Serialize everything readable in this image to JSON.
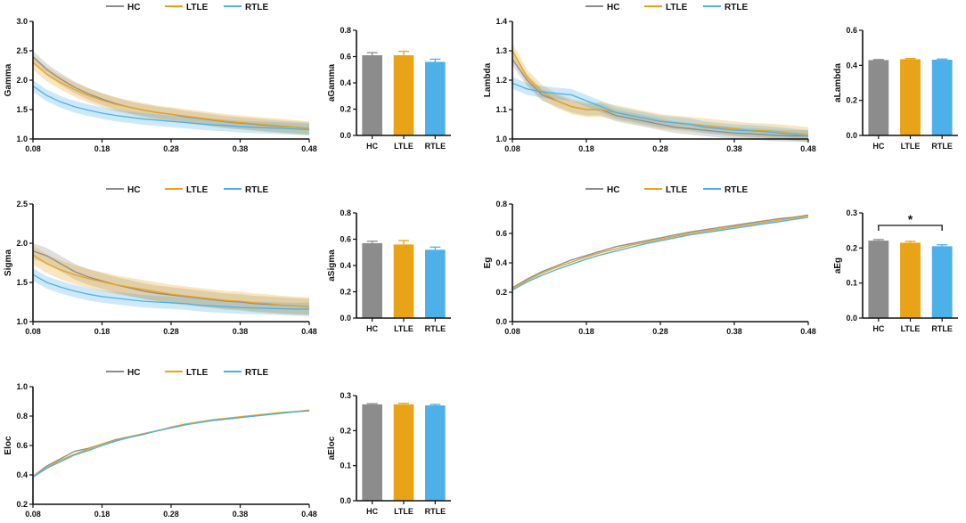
{
  "colors": {
    "HC": "#8c8c8c",
    "LTLE": "#e8a317",
    "RTLE": "#4db0e8"
  },
  "legend_labels": [
    "HC",
    "LTLE",
    "RTLE"
  ],
  "chart_data": [
    {
      "id": "gamma-line",
      "type": "line",
      "ylabel": "Gamma",
      "xlim": [
        0.08,
        0.48
      ],
      "ylim": [
        1.0,
        3.0
      ],
      "xticks": [
        "0.08",
        "0.18",
        "0.28",
        "0.38",
        "0.48"
      ],
      "yticks": [
        "1.0",
        "1.5",
        "2.0",
        "2.5",
        "3.0"
      ],
      "x": [
        0.08,
        0.1,
        0.12,
        0.14,
        0.16,
        0.18,
        0.2,
        0.22,
        0.24,
        0.26,
        0.28,
        0.3,
        0.32,
        0.34,
        0.36,
        0.38,
        0.4,
        0.42,
        0.44,
        0.46,
        0.48
      ],
      "series": [
        {
          "name": "HC",
          "values": [
            2.4,
            2.18,
            2.02,
            1.88,
            1.77,
            1.68,
            1.6,
            1.54,
            1.49,
            1.45,
            1.42,
            1.38,
            1.35,
            1.32,
            1.29,
            1.27,
            1.25,
            1.23,
            1.21,
            1.2,
            1.18
          ],
          "spread": 0.1
        },
        {
          "name": "LTLE",
          "values": [
            2.3,
            2.1,
            1.96,
            1.84,
            1.74,
            1.66,
            1.59,
            1.54,
            1.49,
            1.45,
            1.42,
            1.39,
            1.36,
            1.33,
            1.3,
            1.28,
            1.26,
            1.24,
            1.22,
            1.2,
            1.18
          ],
          "spread": 0.12
        },
        {
          "name": "RTLE",
          "values": [
            1.9,
            1.74,
            1.63,
            1.55,
            1.49,
            1.44,
            1.4,
            1.37,
            1.34,
            1.32,
            1.3,
            1.28,
            1.26,
            1.24,
            1.23,
            1.21,
            1.2,
            1.19,
            1.18,
            1.17,
            1.16
          ],
          "spread": 0.1
        }
      ]
    },
    {
      "id": "gamma-bar",
      "type": "bar",
      "ylabel": "aGamma",
      "ylim": [
        0.0,
        0.8
      ],
      "yticks": [
        "0.0",
        "0.2",
        "0.4",
        "0.6",
        "0.8"
      ],
      "categories": [
        "HC",
        "LTLE",
        "RTLE"
      ],
      "values": [
        0.61,
        0.61,
        0.56
      ],
      "errors": [
        0.02,
        0.03,
        0.02
      ]
    },
    {
      "id": "lambda-line",
      "type": "line",
      "ylabel": "Lambda",
      "xlim": [
        0.08,
        0.48
      ],
      "ylim": [
        1.0,
        1.4
      ],
      "xticks": [
        "0.08",
        "0.18",
        "0.28",
        "0.38",
        "0.48"
      ],
      "yticks": [
        "1.0",
        "1.1",
        "1.2",
        "1.3",
        "1.4"
      ],
      "x": [
        0.08,
        0.1,
        0.12,
        0.14,
        0.16,
        0.18,
        0.2,
        0.22,
        0.24,
        0.26,
        0.28,
        0.3,
        0.32,
        0.34,
        0.36,
        0.38,
        0.4,
        0.42,
        0.44,
        0.46,
        0.48
      ],
      "series": [
        {
          "name": "HC",
          "values": [
            1.27,
            1.2,
            1.15,
            1.13,
            1.11,
            1.1,
            1.1,
            1.08,
            1.07,
            1.06,
            1.05,
            1.04,
            1.035,
            1.03,
            1.025,
            1.02,
            1.018,
            1.015,
            1.012,
            1.01,
            1.01
          ],
          "spread": 0.02
        },
        {
          "name": "LTLE",
          "values": [
            1.3,
            1.21,
            1.16,
            1.13,
            1.11,
            1.1,
            1.1,
            1.09,
            1.08,
            1.07,
            1.06,
            1.055,
            1.05,
            1.045,
            1.04,
            1.035,
            1.03,
            1.028,
            1.025,
            1.02,
            1.015
          ],
          "spread": 0.025
        },
        {
          "name": "RTLE",
          "values": [
            1.19,
            1.17,
            1.16,
            1.155,
            1.15,
            1.13,
            1.11,
            1.09,
            1.08,
            1.07,
            1.06,
            1.055,
            1.05,
            1.04,
            1.035,
            1.03,
            1.028,
            1.025,
            1.02,
            1.015,
            1.01
          ],
          "spread": 0.02
        }
      ]
    },
    {
      "id": "lambda-bar",
      "type": "bar",
      "ylabel": "aLambda",
      "ylim": [
        0.0,
        0.6
      ],
      "yticks": [
        "0.0",
        "0.2",
        "0.4",
        "0.6"
      ],
      "categories": [
        "HC",
        "LTLE",
        "RTLE"
      ],
      "values": [
        0.43,
        0.435,
        0.432
      ],
      "errors": [
        0.003,
        0.004,
        0.004
      ]
    },
    {
      "id": "sigma-line",
      "type": "line",
      "ylabel": "Sigma",
      "xlim": [
        0.08,
        0.48
      ],
      "ylim": [
        1.0,
        2.5
      ],
      "xticks": [
        "0.08",
        "0.18",
        "0.28",
        "0.38",
        "0.48"
      ],
      "yticks": [
        "1.0",
        "1.5",
        "2.0",
        "2.5"
      ],
      "x": [
        0.08,
        0.1,
        0.12,
        0.14,
        0.16,
        0.18,
        0.2,
        0.22,
        0.24,
        0.26,
        0.28,
        0.3,
        0.32,
        0.34,
        0.36,
        0.38,
        0.4,
        0.42,
        0.44,
        0.46,
        0.48
      ],
      "series": [
        {
          "name": "HC",
          "values": [
            1.9,
            1.84,
            1.74,
            1.64,
            1.57,
            1.52,
            1.47,
            1.43,
            1.39,
            1.36,
            1.34,
            1.32,
            1.3,
            1.28,
            1.26,
            1.25,
            1.23,
            1.22,
            1.21,
            1.2,
            1.19
          ],
          "spread": 0.1
        },
        {
          "name": "LTLE",
          "values": [
            1.85,
            1.74,
            1.66,
            1.6,
            1.55,
            1.51,
            1.47,
            1.44,
            1.41,
            1.38,
            1.35,
            1.33,
            1.31,
            1.29,
            1.27,
            1.26,
            1.24,
            1.23,
            1.21,
            1.2,
            1.19
          ],
          "spread": 0.12
        },
        {
          "name": "RTLE",
          "values": [
            1.6,
            1.5,
            1.44,
            1.39,
            1.35,
            1.32,
            1.3,
            1.28,
            1.26,
            1.25,
            1.24,
            1.23,
            1.21,
            1.2,
            1.19,
            1.18,
            1.175,
            1.17,
            1.165,
            1.16,
            1.16
          ],
          "spread": 0.08
        }
      ]
    },
    {
      "id": "sigma-bar",
      "type": "bar",
      "ylabel": "aSigma",
      "ylim": [
        0.0,
        0.8
      ],
      "yticks": [
        "0.0",
        "0.2",
        "0.4",
        "0.6",
        "0.8"
      ],
      "categories": [
        "HC",
        "LTLE",
        "RTLE"
      ],
      "values": [
        0.57,
        0.56,
        0.52
      ],
      "errors": [
        0.015,
        0.03,
        0.02
      ]
    },
    {
      "id": "eg-line",
      "type": "line",
      "ylabel": "Eg",
      "xlim": [
        0.08,
        0.48
      ],
      "ylim": [
        0.0,
        0.8
      ],
      "xticks": [
        "0.08",
        "0.18",
        "0.28",
        "0.38",
        "0.48"
      ],
      "yticks": [
        "0.0",
        "0.2",
        "0.4",
        "0.6",
        "0.8"
      ],
      "x": [
        0.08,
        0.1,
        0.12,
        0.14,
        0.16,
        0.18,
        0.2,
        0.22,
        0.24,
        0.26,
        0.28,
        0.3,
        0.32,
        0.34,
        0.36,
        0.38,
        0.4,
        0.42,
        0.44,
        0.46,
        0.48
      ],
      "series": [
        {
          "name": "HC",
          "values": [
            0.23,
            0.29,
            0.34,
            0.38,
            0.42,
            0.45,
            0.48,
            0.51,
            0.53,
            0.55,
            0.57,
            0.59,
            0.61,
            0.625,
            0.64,
            0.655,
            0.67,
            0.685,
            0.7,
            0.71,
            0.725
          ],
          "spread": 0.005
        },
        {
          "name": "LTLE",
          "values": [
            0.225,
            0.28,
            0.33,
            0.37,
            0.405,
            0.44,
            0.47,
            0.495,
            0.52,
            0.54,
            0.56,
            0.58,
            0.6,
            0.615,
            0.63,
            0.645,
            0.66,
            0.675,
            0.69,
            0.705,
            0.72
          ],
          "spread": 0.005
        },
        {
          "name": "RTLE",
          "values": [
            0.215,
            0.27,
            0.315,
            0.355,
            0.39,
            0.425,
            0.455,
            0.48,
            0.505,
            0.53,
            0.55,
            0.57,
            0.59,
            0.605,
            0.62,
            0.635,
            0.65,
            0.665,
            0.68,
            0.695,
            0.71
          ],
          "spread": 0.005
        }
      ]
    },
    {
      "id": "eg-bar",
      "type": "bar",
      "ylabel": "aEg",
      "ylim": [
        0.0,
        0.3
      ],
      "yticks": [
        "0.0",
        "0.1",
        "0.2",
        "0.3"
      ],
      "categories": [
        "HC",
        "LTLE",
        "RTLE"
      ],
      "values": [
        0.221,
        0.215,
        0.205
      ],
      "errors": [
        0.003,
        0.004,
        0.004
      ],
      "annotation": {
        "text": "*",
        "between": [
          "HC",
          "RTLE"
        ]
      }
    },
    {
      "id": "eloc-line",
      "type": "line",
      "ylabel": "Eloc",
      "xlim": [
        0.08,
        0.48
      ],
      "ylim": [
        0.2,
        1.0
      ],
      "xticks": [
        "0.08",
        "0.18",
        "0.28",
        "0.38",
        "0.48"
      ],
      "yticks": [
        "0.2",
        "0.4",
        "0.6",
        "0.8",
        "1.0"
      ],
      "x": [
        0.08,
        0.1,
        0.12,
        0.14,
        0.16,
        0.18,
        0.2,
        0.22,
        0.24,
        0.26,
        0.28,
        0.3,
        0.32,
        0.34,
        0.36,
        0.38,
        0.4,
        0.42,
        0.44,
        0.46,
        0.48
      ],
      "series": [
        {
          "name": "HC",
          "values": [
            0.39,
            0.46,
            0.51,
            0.56,
            0.58,
            0.61,
            0.64,
            0.66,
            0.68,
            0.7,
            0.72,
            0.74,
            0.76,
            0.77,
            0.78,
            0.79,
            0.8,
            0.81,
            0.82,
            0.83,
            0.84
          ],
          "spread": 0.005
        },
        {
          "name": "LTLE",
          "values": [
            0.39,
            0.45,
            0.5,
            0.54,
            0.575,
            0.61,
            0.635,
            0.66,
            0.68,
            0.7,
            0.725,
            0.745,
            0.76,
            0.775,
            0.785,
            0.795,
            0.805,
            0.815,
            0.825,
            0.83,
            0.84
          ],
          "spread": 0.005
        },
        {
          "name": "RTLE",
          "values": [
            0.385,
            0.445,
            0.49,
            0.535,
            0.565,
            0.6,
            0.63,
            0.655,
            0.675,
            0.7,
            0.72,
            0.74,
            0.755,
            0.77,
            0.78,
            0.79,
            0.8,
            0.81,
            0.82,
            0.83,
            0.835
          ],
          "spread": 0.005
        }
      ]
    },
    {
      "id": "eloc-bar",
      "type": "bar",
      "ylabel": "aEloc",
      "ylim": [
        0.0,
        0.3
      ],
      "yticks": [
        "0.0",
        "0.1",
        "0.2",
        "0.3"
      ],
      "categories": [
        "HC",
        "LTLE",
        "RTLE"
      ],
      "values": [
        0.275,
        0.275,
        0.272
      ],
      "errors": [
        0.002,
        0.003,
        0.003
      ]
    }
  ]
}
